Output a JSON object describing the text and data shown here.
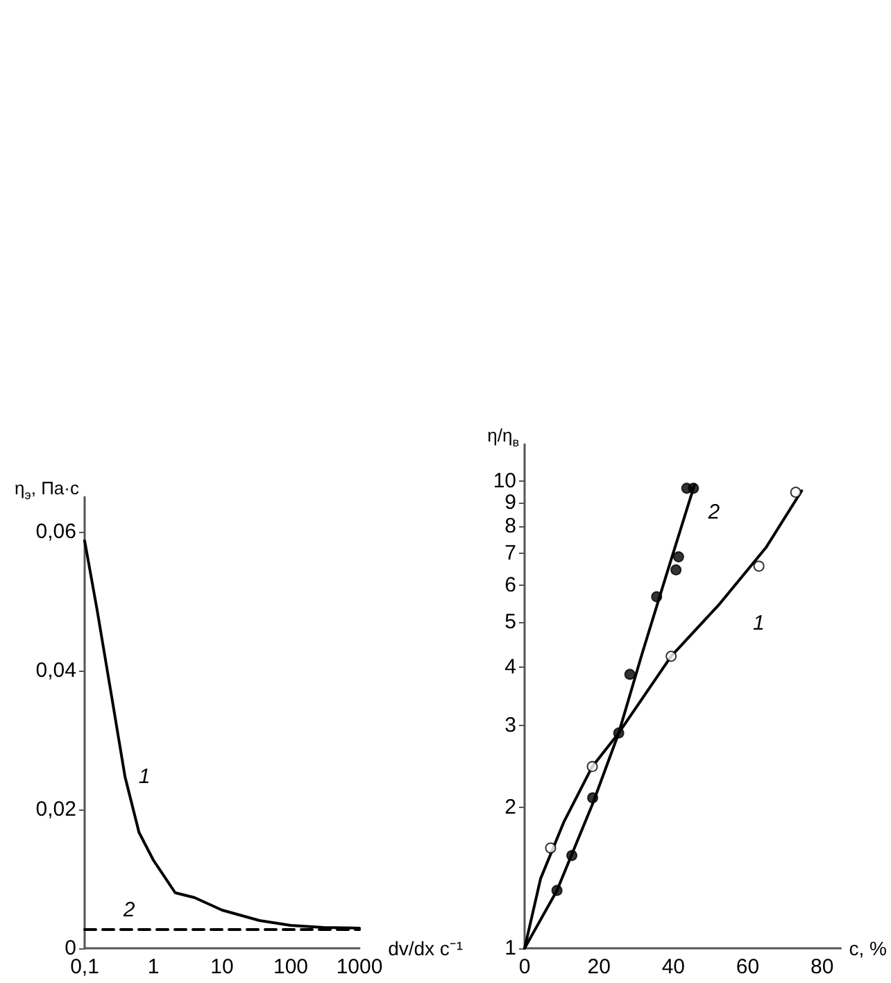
{
  "chart_data": [
    {
      "type": "line",
      "xlabel": "dv/dx c⁻¹",
      "ylabel": "η$_{э}$, Па·с",
      "log": "x",
      "marker": "none",
      "xlim": [
        0.1,
        1000
      ],
      "xticks": [
        {
          "value": 0.1,
          "label": "0,1"
        },
        1,
        10,
        100,
        1000
      ],
      "ylim": [
        0,
        0.065
      ],
      "yticks": [
        0,
        {
          "value": 0.02,
          "label": "0,02"
        },
        {
          "value": 0.04,
          "label": "0,04"
        },
        {
          "value": 0.06,
          "label": "0,06"
        }
      ],
      "series": [
        {
          "name": "1",
          "color": "#000000",
          "line_style": "solid",
          "x": [
            0.1,
            0.152,
            0.243,
            0.387,
            0.618,
            1,
            2.08,
            3.98,
            10,
            35,
            100,
            297,
            1000
          ],
          "values": [
            0.0587,
            0.0487,
            0.0367,
            0.0247,
            0.0167,
            0.0127,
            0.008,
            0.0073,
            0.0055,
            0.004,
            0.0033,
            0.003,
            0.0029
          ]
        },
        {
          "name": "2",
          "color": "#000000",
          "line_style": "dashed",
          "x": [
            0.1,
            1000
          ],
          "values": [
            0.0027,
            0.0027
          ]
        }
      ]
    },
    {
      "type": "line",
      "xlabel": "c, %",
      "ylabel": "η/η$_{в}$",
      "log": "y",
      "xlim": [
        0,
        85
      ],
      "xticks": [
        0,
        20,
        40,
        60,
        80
      ],
      "ylim": [
        1,
        12
      ],
      "yticks": [
        1,
        2,
        3,
        4,
        5,
        6,
        7,
        8,
        9,
        10
      ],
      "series": [
        {
          "name": "1",
          "color": "#000000",
          "marker": "none",
          "line_style": "solid",
          "x": [
            0,
            4.3,
            10.5,
            18.2,
            25.3,
            39.4,
            52.5,
            64.9,
            74.5
          ],
          "values": [
            1,
            1.41,
            1.86,
            2.45,
            2.89,
            4.22,
            5.47,
            7.21,
            9.54
          ]
        },
        {
          "name": "2",
          "color": "#000000",
          "marker": "none",
          "line_style": "solid",
          "x": [
            0,
            8.7,
            18.3,
            25.3,
            31.5,
            37.7,
            45.7
          ],
          "values": [
            1,
            1.33,
            2.04,
            2.89,
            4.25,
            6.15,
            9.84
          ]
        },
        {
          "type": "scatter",
          "color": "#ffffff",
          "marker": "circle",
          "x": [
            7.0,
            18.2,
            39.4,
            63.0,
            72.9
          ],
          "values": [
            1.64,
            2.45,
            4.22,
            6.58,
            9.47
          ]
        },
        {
          "type": "scatter",
          "color": "#000000",
          "marker": "circle",
          "x": [
            8.7,
            12.7,
            18.3,
            25.3,
            28.3,
            35.5,
            40.7,
            41.4,
            43.6,
            45.4
          ],
          "values": [
            1.33,
            1.58,
            2.1,
            2.89,
            3.86,
            5.66,
            6.46,
            6.89,
            9.66,
            9.66
          ]
        }
      ]
    }
  ]
}
